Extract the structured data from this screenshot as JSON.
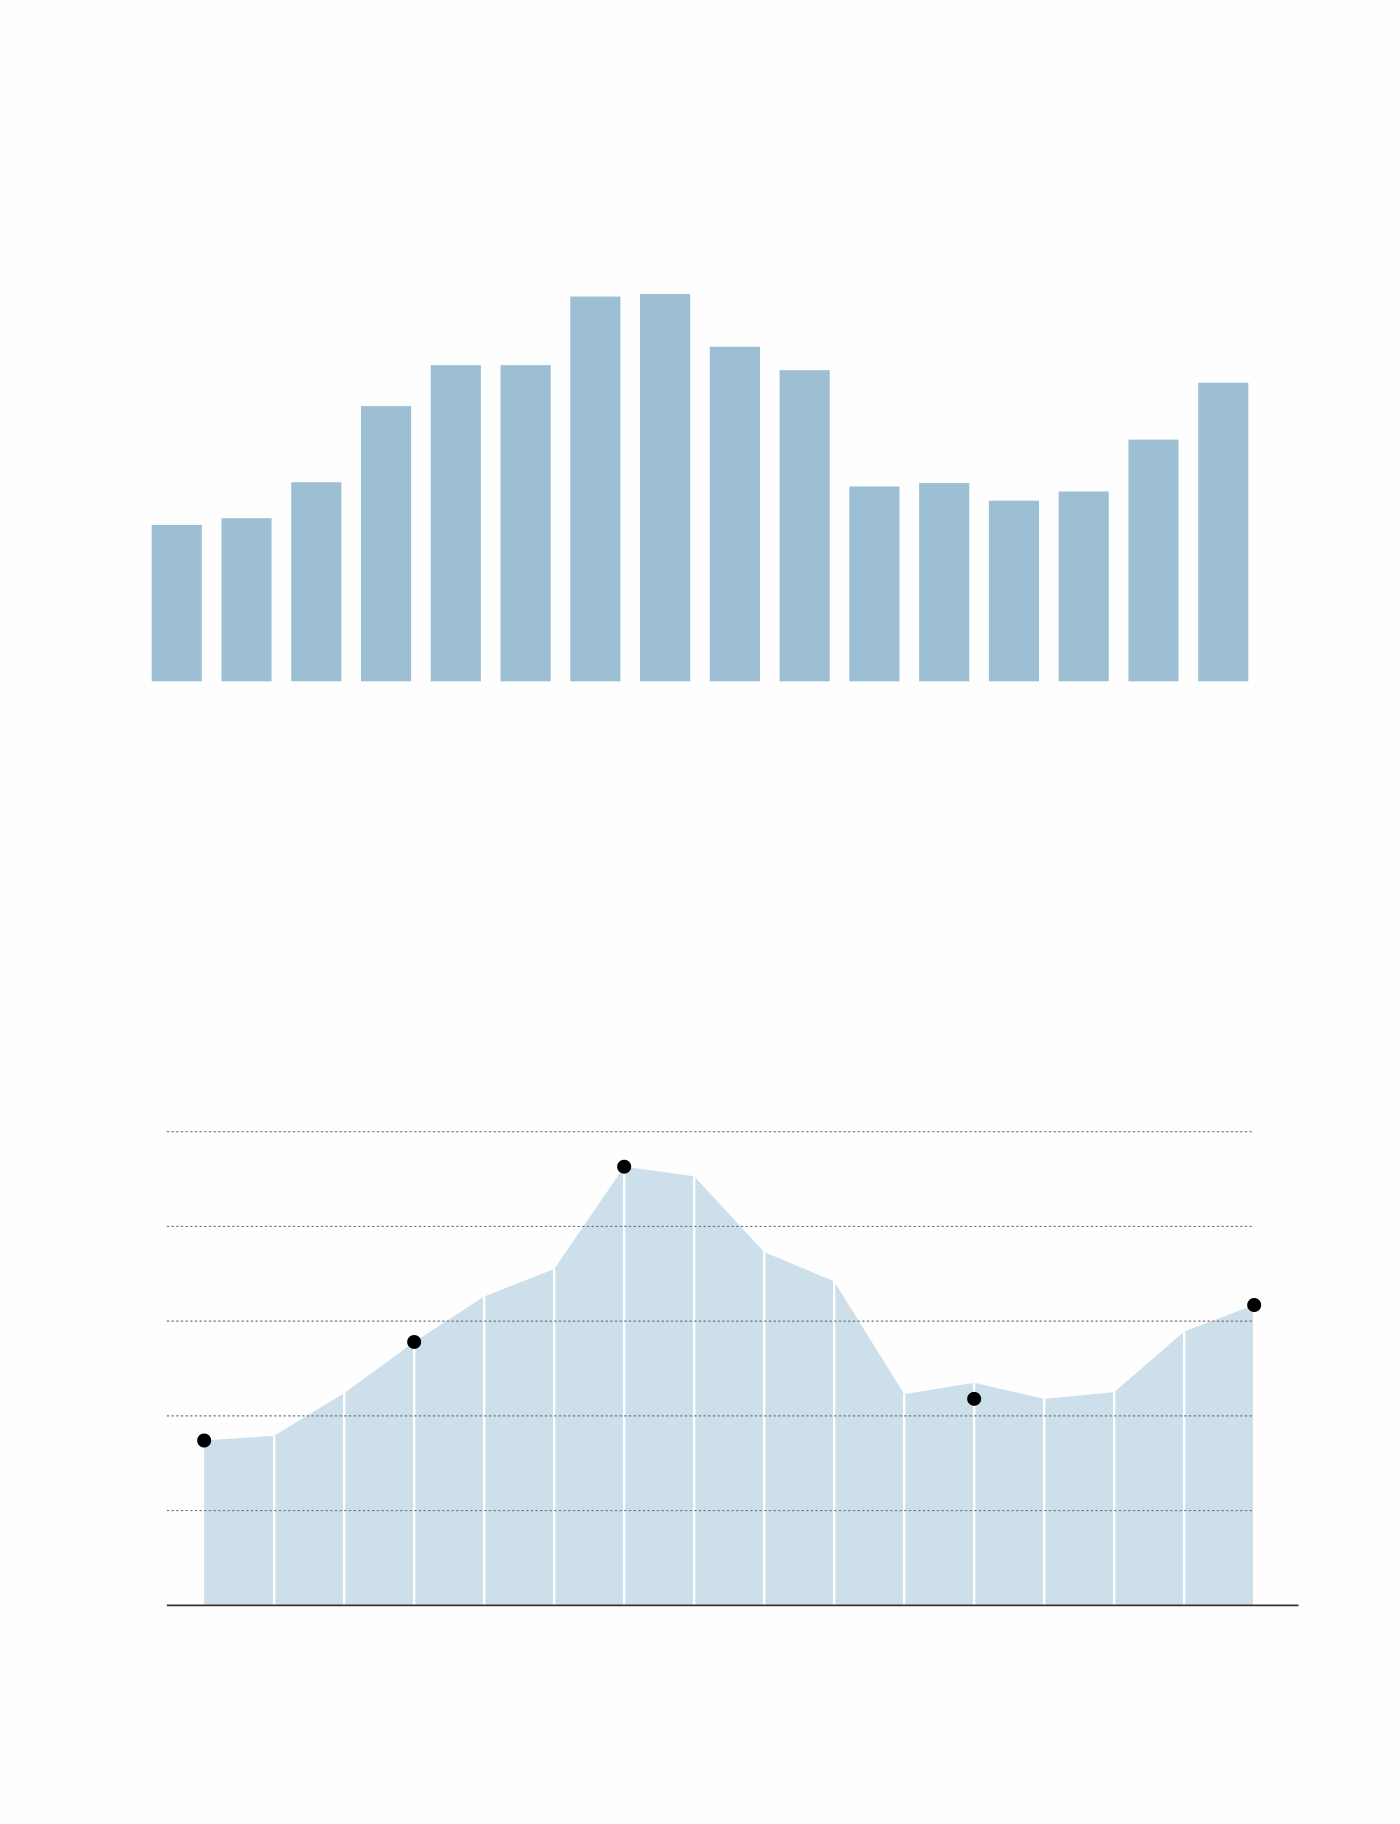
{
  "chart_data": [
    {
      "type": "bar",
      "categories": [
        null,
        null,
        null,
        null,
        null,
        null,
        null,
        null,
        null,
        null,
        null,
        null,
        null,
        null,
        null,
        null
      ],
      "values": [
        1.87,
        1.95,
        2.38,
        3.29,
        3.78,
        3.78,
        4.6,
        4.63,
        4.0,
        3.72,
        2.33,
        2.37,
        2.16,
        2.27,
        2.89,
        3.57
      ],
      "color": "#9dbfd4",
      "ylim": [
        0,
        5
      ]
    },
    {
      "type": "area",
      "categories": [
        null,
        null,
        null,
        null,
        null,
        null,
        null,
        null,
        null,
        null,
        null,
        null,
        null,
        null,
        null,
        null
      ],
      "series": [
        {
          "color": "#cddfea",
          "values": [
            1.74,
            1.79,
            2.24,
            2.78,
            3.26,
            3.55,
            4.63,
            4.53,
            3.73,
            3.42,
            2.23,
            2.35,
            2.18,
            2.25,
            2.89,
            3.17
          ]
        },
        {
          "type": "scatter",
          "color": "#000000",
          "values": [
            1.74,
            null,
            null,
            2.78,
            null,
            null,
            4.63,
            null,
            null,
            null,
            null,
            2.18,
            null,
            null,
            null,
            3.17
          ]
        }
      ],
      "ylim": [
        0,
        5
      ],
      "yticks": [
        1,
        2,
        3,
        4,
        5
      ],
      "grid": true
    }
  ]
}
